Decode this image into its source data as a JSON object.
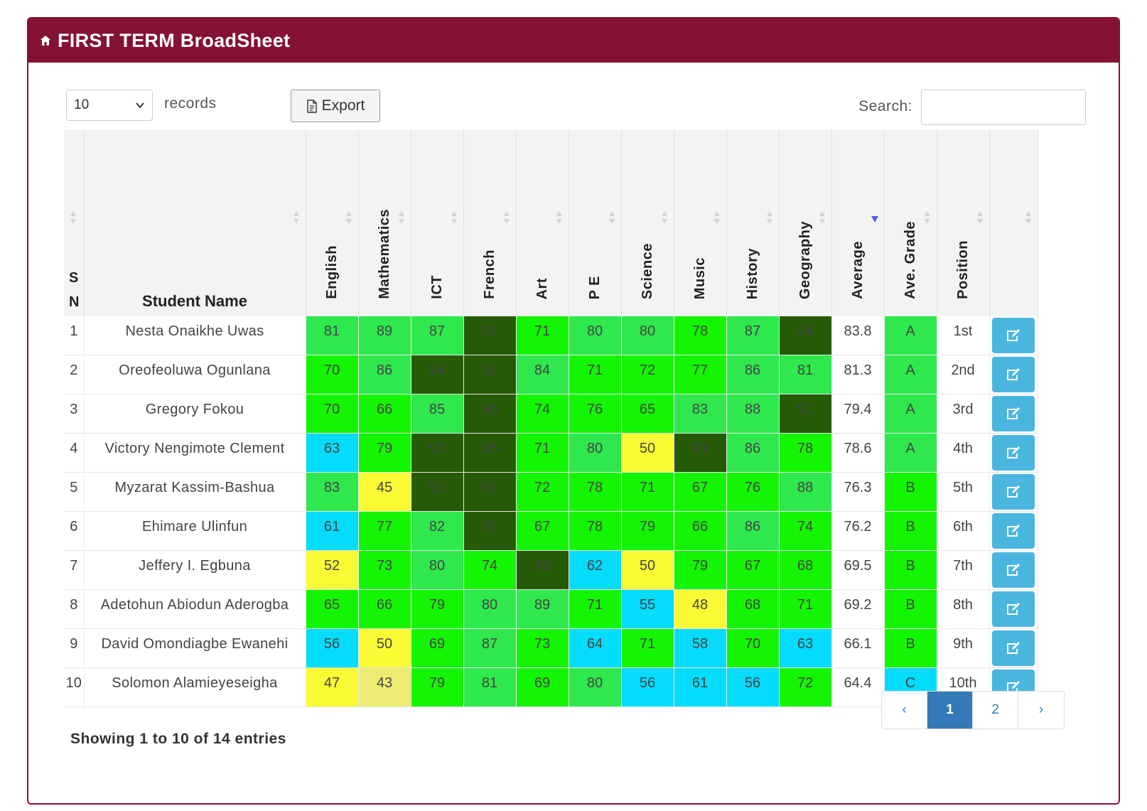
{
  "header": {
    "title": "FIRST TERM BroadSheet",
    "icon": "home-icon"
  },
  "controls": {
    "length_value": "10",
    "records_label": "records",
    "export_label": "Export",
    "search_label": "Search:",
    "search_value": ""
  },
  "table": {
    "sn_header": [
      "S",
      "N"
    ],
    "name_header": "Student Name",
    "subject_headers": [
      "English",
      "Mathematics",
      "ICT",
      "French",
      "Art",
      "P E",
      "Science",
      "Music",
      "History",
      "Geography"
    ],
    "average_header": "Average",
    "grade_header": "Ave. Grade",
    "position_header": "Position",
    "sorted_column": "Average",
    "score_colors": {
      "90+": "#255b06",
      "80-89": "#2ee84e",
      "65-79": "#14f503",
      "55-64": "#03dcfb",
      "45-54": "#fbfb35",
      "below-45": "#ecec72"
    },
    "rows": [
      {
        "sn": "1",
        "name": "Nesta Onaikhe Uwas",
        "scores": [
          "81",
          "89",
          "87",
          "91",
          "71",
          "80",
          "80",
          "78",
          "87",
          "94"
        ],
        "average": "83.8",
        "grade": "A",
        "position": "1st"
      },
      {
        "sn": "2",
        "name": "Oreofeoluwa Ogunlana",
        "scores": [
          "70",
          "86",
          "94",
          "92",
          "84",
          "71",
          "72",
          "77",
          "86",
          "81"
        ],
        "average": "81.3",
        "grade": "A",
        "position": "2nd"
      },
      {
        "sn": "3",
        "name": "Gregory Fokou",
        "scores": [
          "70",
          "66",
          "85",
          "96",
          "74",
          "76",
          "65",
          "83",
          "88",
          "91"
        ],
        "average": "79.4",
        "grade": "A",
        "position": "3rd"
      },
      {
        "sn": "4",
        "name": "Victory Nengimote Clement",
        "scores": [
          "63",
          "79",
          "93",
          "95",
          "71",
          "80",
          "50",
          "91",
          "86",
          "78"
        ],
        "average": "78.6",
        "grade": "A",
        "position": "4th"
      },
      {
        "sn": "5",
        "name": "Myzarat Kassim-Bashua",
        "scores": [
          "83",
          "45",
          "92",
          "91",
          "72",
          "78",
          "71",
          "67",
          "76",
          "88"
        ],
        "average": "76.3",
        "grade": "B",
        "position": "5th"
      },
      {
        "sn": "6",
        "name": "Ehimare Ulinfun",
        "scores": [
          "61",
          "77",
          "82",
          "92",
          "67",
          "78",
          "79",
          "66",
          "86",
          "74"
        ],
        "average": "76.2",
        "grade": "B",
        "position": "6th"
      },
      {
        "sn": "7",
        "name": "Jeffery I. Egbuna",
        "scores": [
          "52",
          "73",
          "80",
          "74",
          "90",
          "62",
          "50",
          "79",
          "67",
          "68"
        ],
        "average": "69.5",
        "grade": "B",
        "position": "7th"
      },
      {
        "sn": "8",
        "name": "Adetohun Abiodun Aderogba",
        "scores": [
          "65",
          "66",
          "79",
          "80",
          "89",
          "71",
          "55",
          "48",
          "68",
          "71"
        ],
        "average": "69.2",
        "grade": "B",
        "position": "8th"
      },
      {
        "sn": "9",
        "name": "David Omondiagbe Ewanehi",
        "scores": [
          "56",
          "50",
          "69",
          "87",
          "73",
          "64",
          "71",
          "58",
          "70",
          "63"
        ],
        "average": "66.1",
        "grade": "B",
        "position": "9th"
      },
      {
        "sn": "10",
        "name": "Solomon Alamieyeseigha",
        "scores": [
          "47",
          "43",
          "79",
          "81",
          "69",
          "80",
          "56",
          "61",
          "56",
          "72"
        ],
        "average": "64.4",
        "grade": "C",
        "position": "10th"
      }
    ]
  },
  "footer": {
    "info": "Showing 1 to 10 of 14 entries",
    "pages": [
      "‹",
      "1",
      "2",
      "›"
    ],
    "active_page": "1"
  }
}
